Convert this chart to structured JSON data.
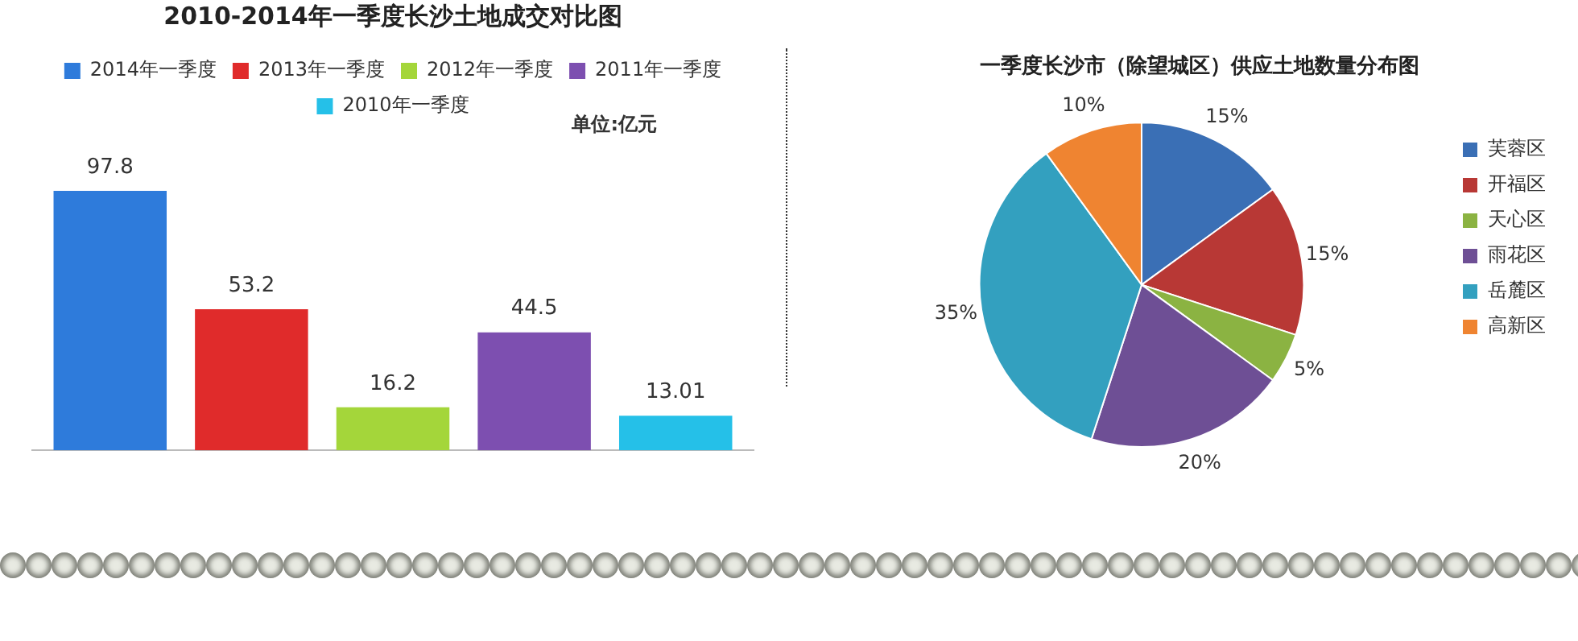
{
  "chart_data": [
    {
      "type": "bar",
      "title": "2010-2014年一季度长沙土地成交对比图",
      "categories": [
        null
      ],
      "series": [
        {
          "name": "2014年一季度",
          "color": "#2e7bdb",
          "values": [
            97.8
          ]
        },
        {
          "name": "2013年一季度",
          "color": "#e02b2b",
          "values": [
            53.2
          ]
        },
        {
          "name": "2012年一季度",
          "color": "#a4d63a",
          "values": [
            16.2
          ]
        },
        {
          "name": "2011年一季度",
          "color": "#7d4fb0",
          "values": [
            44.5
          ]
        },
        {
          "name": "2010年一季度",
          "color": "#25c0e8",
          "values": [
            13.01
          ]
        }
      ],
      "data_labels": true,
      "legend": "top",
      "grid": false,
      "annotations": [
        "单位:亿元"
      ]
    },
    {
      "type": "pie",
      "title": "一季度长沙市（除望城区）供应土地数量分布图",
      "categories": [
        "芙蓉区",
        "开福区",
        "天心区",
        "雨花区",
        "岳麓区",
        "高新区"
      ],
      "values": [
        15,
        15,
        5,
        20,
        35,
        10
      ],
      "colors": [
        "#3a6fb5",
        "#b83835",
        "#8bb342",
        "#6e4f95",
        "#33a0bf",
        "#ef8431"
      ],
      "value_labels": [
        "15%",
        "15%",
        "5%",
        "20%",
        "35%",
        "10%"
      ],
      "legend": "right"
    }
  ]
}
